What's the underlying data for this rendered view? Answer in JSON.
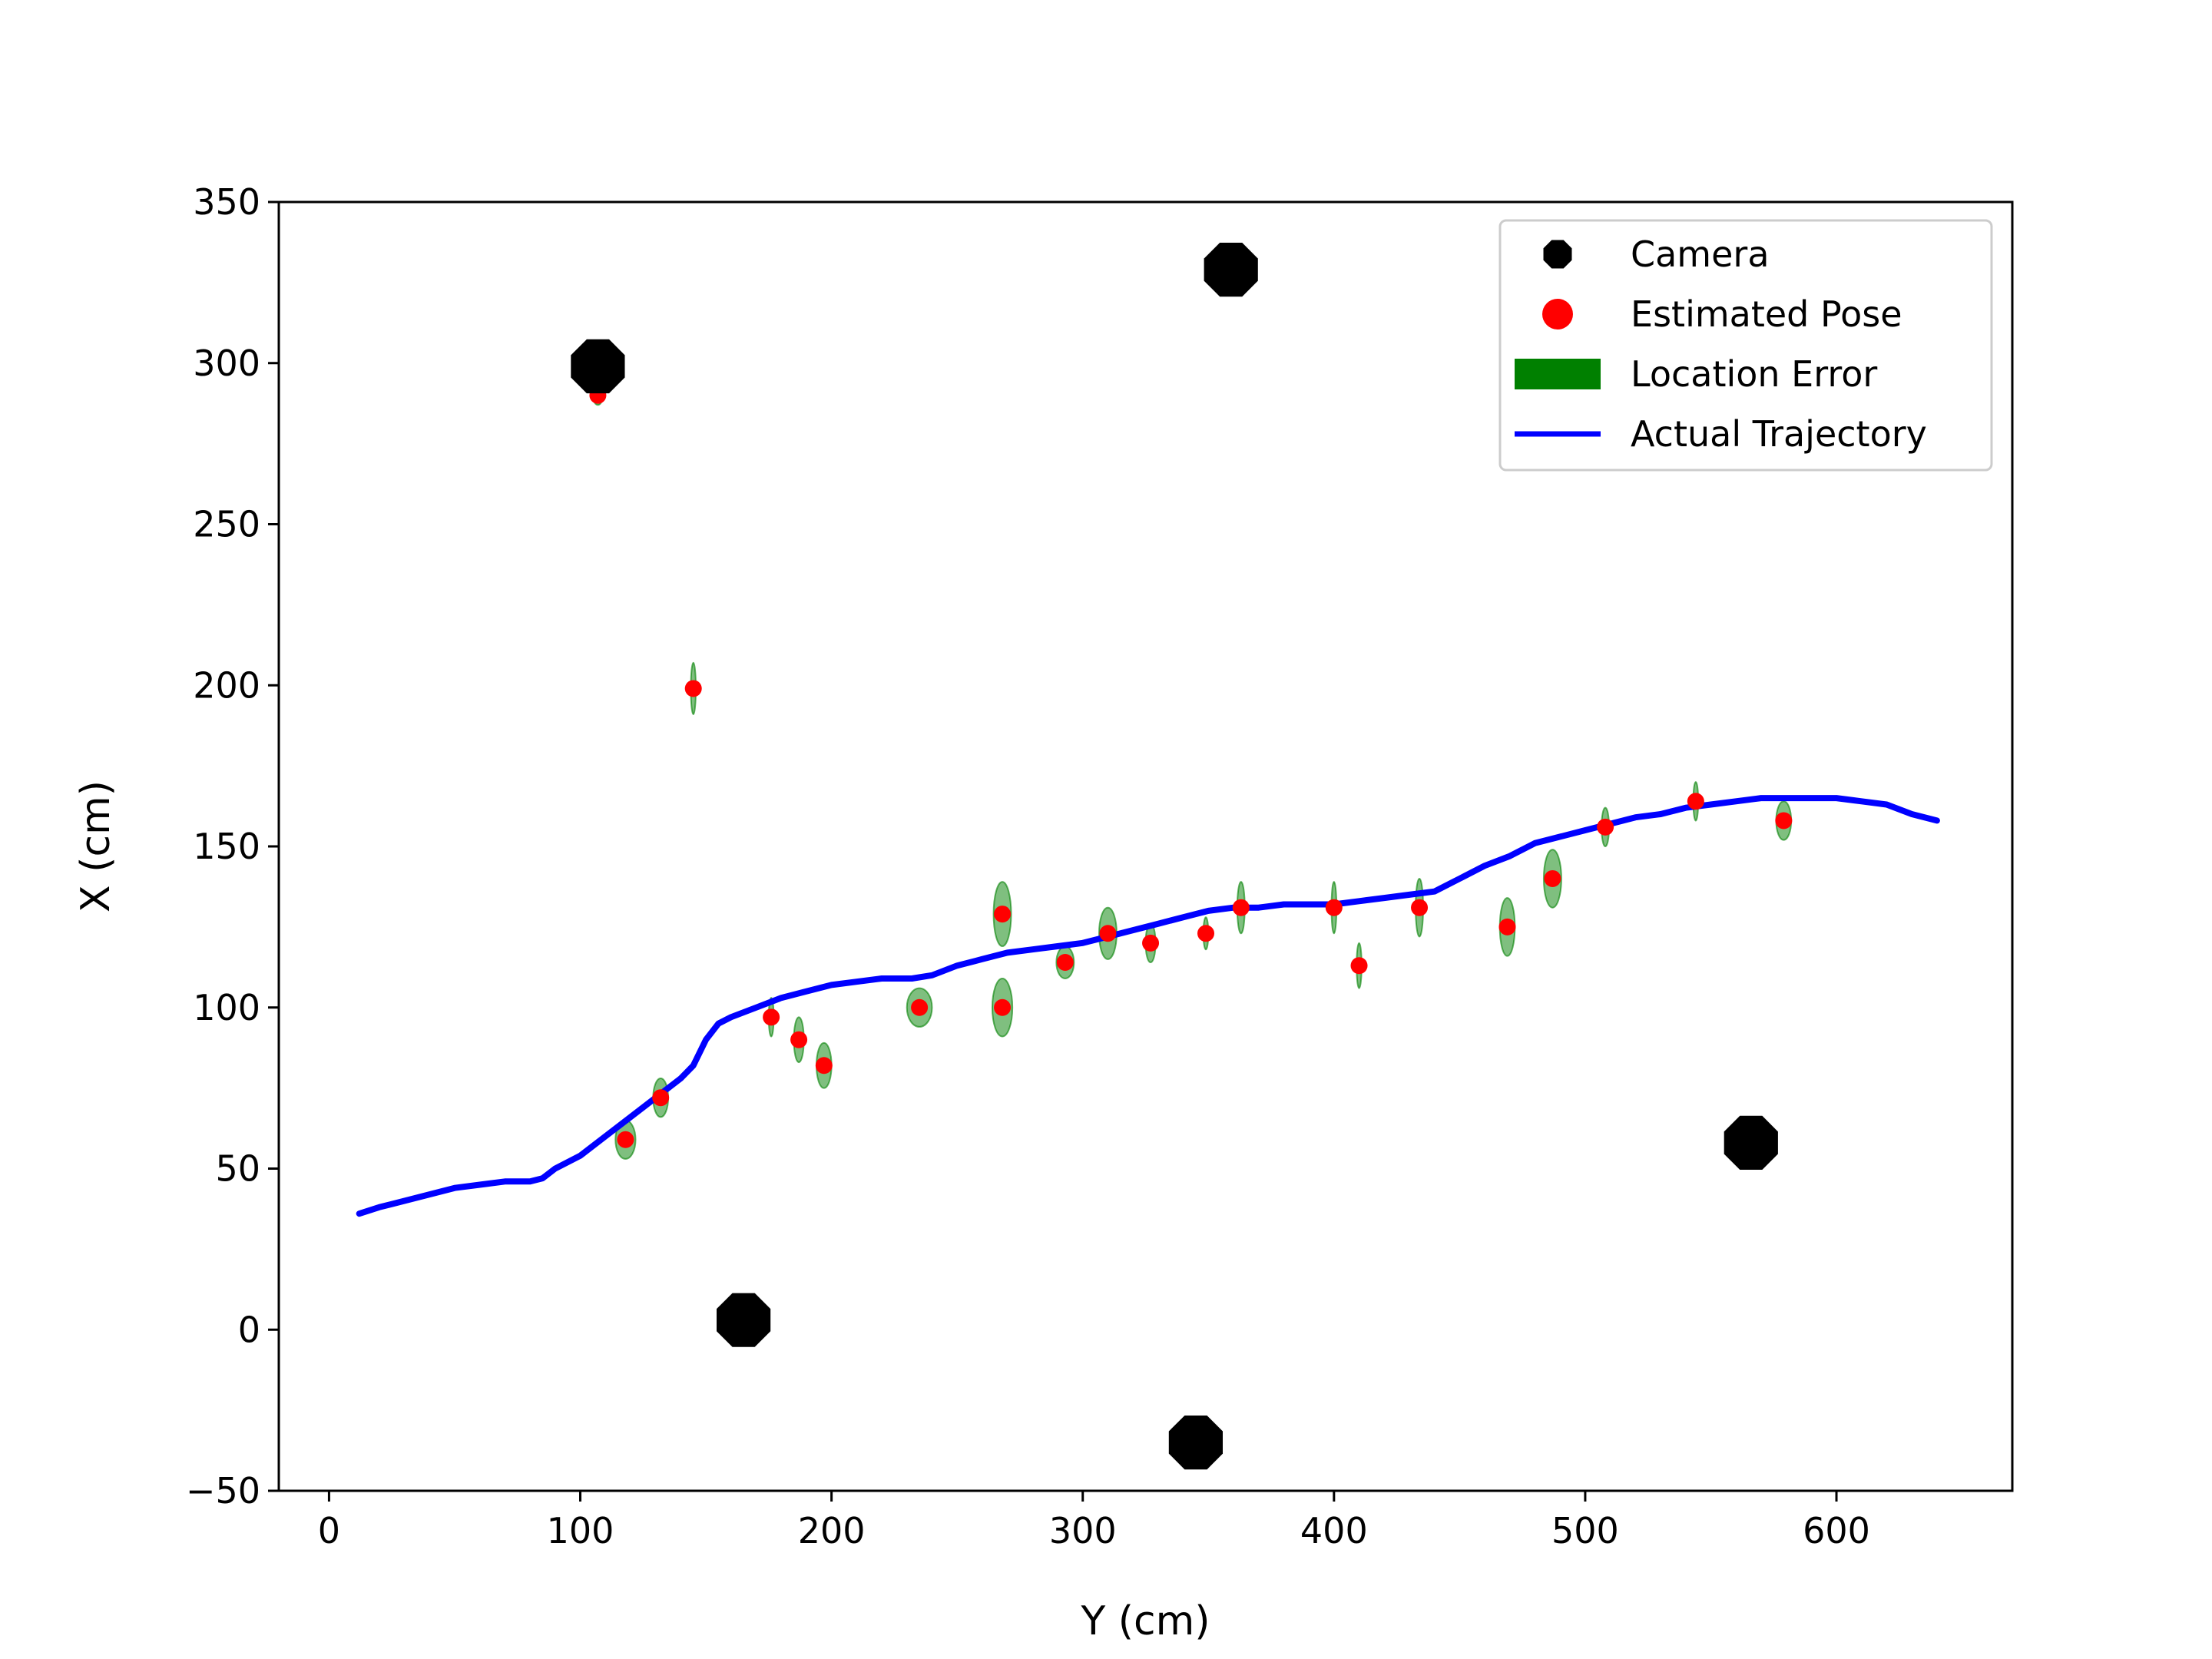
{
  "chart_data": {
    "type": "scatter",
    "xlabel": "Y (cm)",
    "ylabel": "X (cm)",
    "xlim": [
      -20,
      670
    ],
    "ylim": [
      -50,
      350
    ],
    "xticks": [
      0,
      100,
      200,
      300,
      400,
      500,
      600
    ],
    "yticks": [
      -50,
      0,
      50,
      100,
      150,
      200,
      250,
      300,
      350
    ],
    "xtick_labels": [
      "0",
      "100",
      "200",
      "300",
      "400",
      "500",
      "600"
    ],
    "ytick_labels": [
      "−50",
      "0",
      "50",
      "100",
      "150",
      "200",
      "250",
      "300",
      "350"
    ],
    "grid": false,
    "legend_position": "top-right",
    "colors": {
      "camera": "#000000",
      "estimated_pose": "#ff0000",
      "location_error": "#008000",
      "trajectory": "#0000ff"
    },
    "series": [
      {
        "name": "Camera",
        "kind": "marker",
        "marker": "octagon",
        "points": [
          [
            107,
            299
          ],
          [
            359,
            329
          ],
          [
            165,
            3
          ],
          [
            345,
            -35
          ],
          [
            566,
            58
          ]
        ]
      },
      {
        "name": "Estimated Pose",
        "kind": "marker",
        "marker": "circle",
        "points": [
          [
            107,
            290
          ],
          [
            145,
            199
          ],
          [
            118,
            59
          ],
          [
            132,
            72
          ],
          [
            176,
            97
          ],
          [
            187,
            90
          ],
          [
            197,
            82
          ],
          [
            235,
            100
          ],
          [
            268,
            129
          ],
          [
            268,
            100
          ],
          [
            293,
            114
          ],
          [
            310,
            123
          ],
          [
            327,
            120
          ],
          [
            349,
            123
          ],
          [
            363,
            131
          ],
          [
            400,
            131
          ],
          [
            410,
            113
          ],
          [
            434,
            131
          ],
          [
            469,
            125
          ],
          [
            487,
            140
          ],
          [
            508,
            156
          ],
          [
            544,
            164
          ],
          [
            579,
            158
          ]
        ]
      },
      {
        "name": "Location Error",
        "kind": "ellipse",
        "note_units": "ellipse entries are [y, x, half-width, half-height] in cm",
        "ellipses": [
          [
            107,
            290,
            2,
            3
          ],
          [
            145,
            199,
            1,
            8
          ],
          [
            118,
            59,
            4,
            6
          ],
          [
            132,
            72,
            3,
            6
          ],
          [
            176,
            97,
            1,
            6
          ],
          [
            187,
            90,
            2,
            7
          ],
          [
            197,
            82,
            3,
            7
          ],
          [
            235,
            100,
            5,
            6
          ],
          [
            268,
            129,
            3.5,
            10
          ],
          [
            268,
            100,
            4,
            9
          ],
          [
            293,
            114,
            3.5,
            5
          ],
          [
            310,
            123,
            3.5,
            8
          ],
          [
            327,
            120,
            2,
            6
          ],
          [
            349,
            123,
            1,
            5
          ],
          [
            363,
            131,
            1.5,
            8
          ],
          [
            400,
            131,
            1,
            8
          ],
          [
            410,
            113,
            1,
            7
          ],
          [
            434,
            131,
            1.5,
            9
          ],
          [
            469,
            125,
            3,
            9
          ],
          [
            487,
            140,
            3.5,
            9
          ],
          [
            508,
            156,
            1.5,
            6
          ],
          [
            544,
            164,
            1,
            6
          ],
          [
            579,
            158,
            3,
            6
          ]
        ]
      },
      {
        "name": "Actual Trajectory",
        "kind": "line",
        "points": [
          [
            12,
            36
          ],
          [
            20,
            38
          ],
          [
            30,
            40
          ],
          [
            40,
            42
          ],
          [
            50,
            44
          ],
          [
            60,
            45
          ],
          [
            70,
            46
          ],
          [
            80,
            46
          ],
          [
            85,
            47
          ],
          [
            90,
            50
          ],
          [
            100,
            54
          ],
          [
            110,
            60
          ],
          [
            120,
            66
          ],
          [
            130,
            72
          ],
          [
            140,
            78
          ],
          [
            145,
            82
          ],
          [
            150,
            90
          ],
          [
            155,
            95
          ],
          [
            160,
            97
          ],
          [
            170,
            100
          ],
          [
            180,
            103
          ],
          [
            190,
            105
          ],
          [
            200,
            107
          ],
          [
            210,
            108
          ],
          [
            220,
            109
          ],
          [
            232,
            109
          ],
          [
            240,
            110
          ],
          [
            250,
            113
          ],
          [
            260,
            115
          ],
          [
            270,
            117
          ],
          [
            280,
            118
          ],
          [
            290,
            119
          ],
          [
            300,
            120
          ],
          [
            310,
            122
          ],
          [
            320,
            124
          ],
          [
            330,
            126
          ],
          [
            340,
            128
          ],
          [
            350,
            130
          ],
          [
            360,
            131
          ],
          [
            370,
            131
          ],
          [
            380,
            132
          ],
          [
            390,
            132
          ],
          [
            400,
            132
          ],
          [
            410,
            133
          ],
          [
            420,
            134
          ],
          [
            430,
            135
          ],
          [
            440,
            136
          ],
          [
            450,
            140
          ],
          [
            460,
            144
          ],
          [
            470,
            147
          ],
          [
            480,
            151
          ],
          [
            490,
            153
          ],
          [
            500,
            155
          ],
          [
            510,
            157
          ],
          [
            520,
            159
          ],
          [
            530,
            160
          ],
          [
            540,
            162
          ],
          [
            550,
            163
          ],
          [
            560,
            164
          ],
          [
            570,
            165
          ],
          [
            580,
            165
          ],
          [
            590,
            165
          ],
          [
            600,
            165
          ],
          [
            610,
            164
          ],
          [
            620,
            163
          ],
          [
            630,
            160
          ],
          [
            640,
            158
          ]
        ]
      }
    ]
  }
}
